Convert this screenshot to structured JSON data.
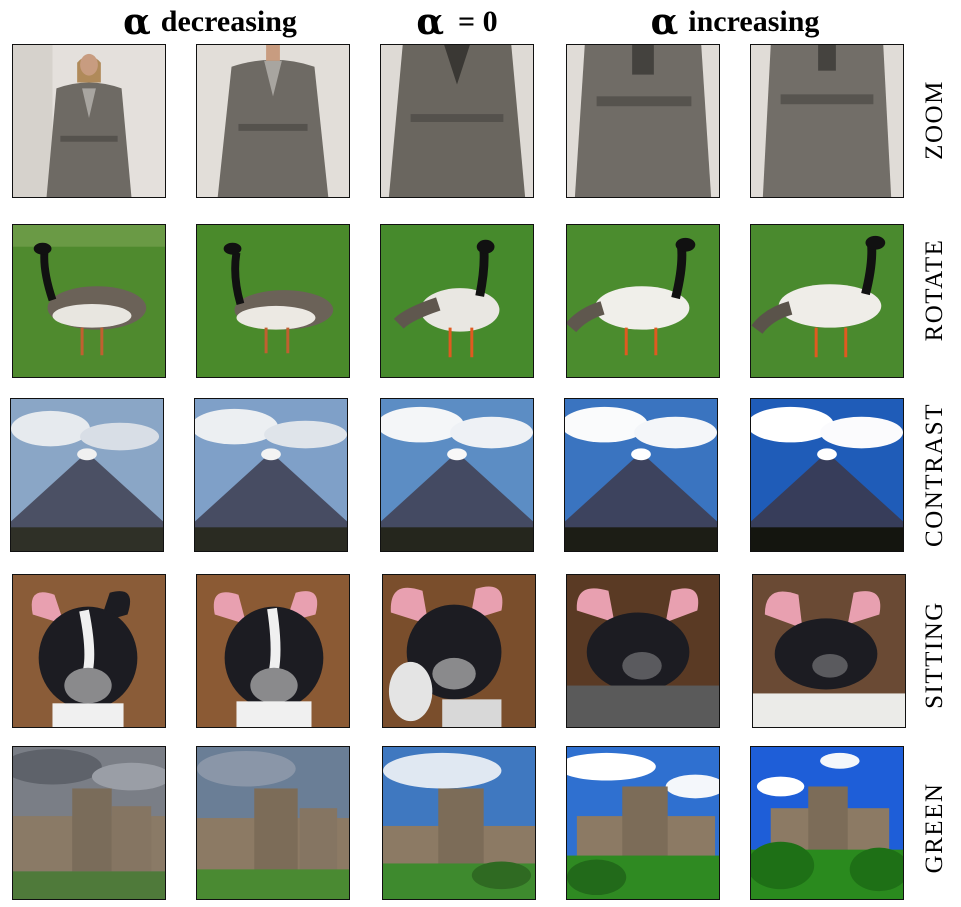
{
  "header": {
    "alpha_symbol": "α",
    "decreasing": "decreasing",
    "zero": "= 0",
    "increasing": "increasing"
  },
  "rows": [
    {
      "label": "ZOOM",
      "subject": "trench coat"
    },
    {
      "label": "ROTATE",
      "subject": "goose"
    },
    {
      "label": "CONTRAST",
      "subject": "volcano"
    },
    {
      "label": "SITTING",
      "subject": "french bulldog"
    },
    {
      "label": "GREEN",
      "subject": "castle"
    }
  ],
  "colors": {
    "coat": "#6e6a64",
    "grass": "#4f8a2e",
    "sky": "#4a7fc0",
    "mountain": "#4b5064",
    "dog_black": "#1c1c22",
    "stone": "#8a7a66"
  }
}
